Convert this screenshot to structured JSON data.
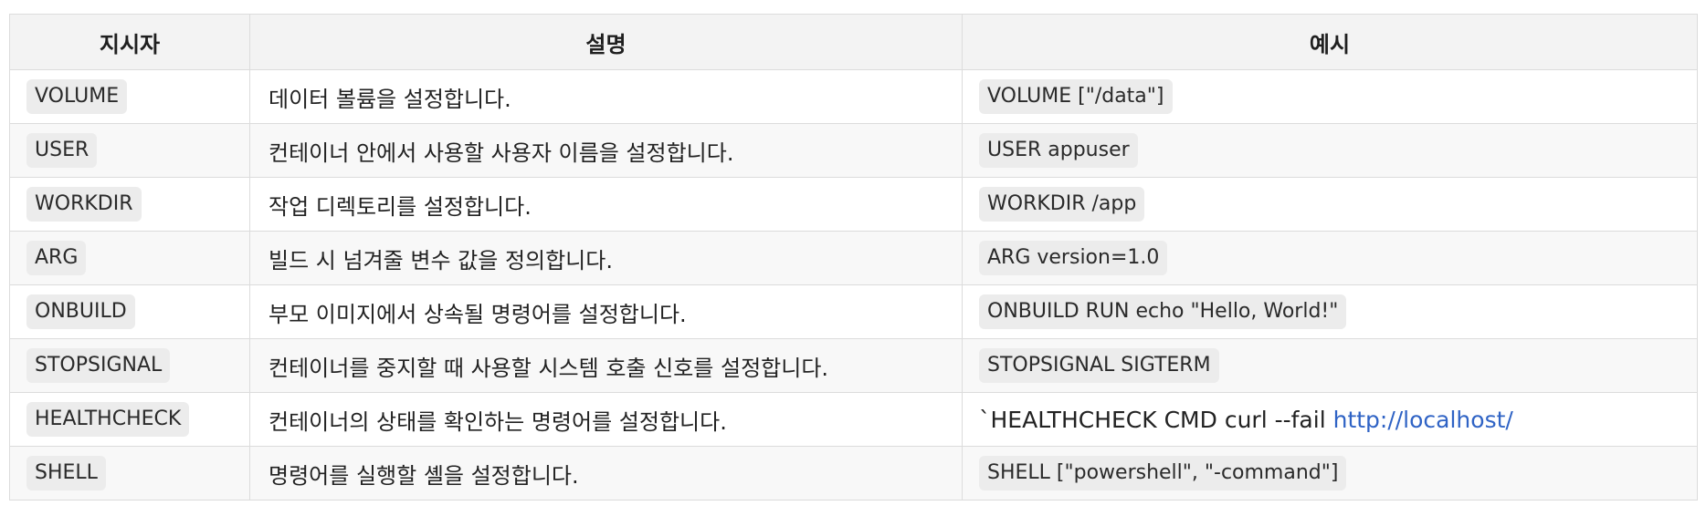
{
  "table": {
    "headers": [
      "지시자",
      "설명",
      "예시"
    ],
    "rows": [
      {
        "directive": "VOLUME",
        "description": "데이터 볼륨을 설정합니다.",
        "example": "VOLUME [\"/data\"]"
      },
      {
        "directive": "USER",
        "description": "컨테이너 안에서 사용할 사용자 이름을 설정합니다.",
        "example": "USER appuser"
      },
      {
        "directive": "WORKDIR",
        "description": "작업 디렉토리를 설정합니다.",
        "example": "WORKDIR /app"
      },
      {
        "directive": "ARG",
        "description": "빌드 시 넘겨줄 변수 값을 정의합니다.",
        "example": "ARG version=1.0"
      },
      {
        "directive": "ONBUILD",
        "description": "부모 이미지에서 상속될 명령어를 설정합니다.",
        "example": "ONBUILD RUN echo \"Hello, World!\""
      },
      {
        "directive": "STOPSIGNAL",
        "description": "컨테이너를 중지할 때 사용할 시스템 호출 신호를 설정합니다.",
        "example": "STOPSIGNAL SIGTERM"
      },
      {
        "directive": "HEALTHCHECK",
        "description": "컨테이너의 상태를 확인하는 명령어를 설정합니다.",
        "example_prefix": "`HEALTHCHECK CMD curl --fail ",
        "example_link": "http://localhost/"
      },
      {
        "directive": "SHELL",
        "description": "명령어를 실행할 셸을 설정합니다.",
        "example": "SHELL [\"powershell\", \"-command\"]"
      }
    ]
  },
  "colors": {
    "link": "#2f63c5",
    "header_bg": "#f3f3f3",
    "code_bg": "#ececec",
    "border": "#dcdcdc"
  }
}
